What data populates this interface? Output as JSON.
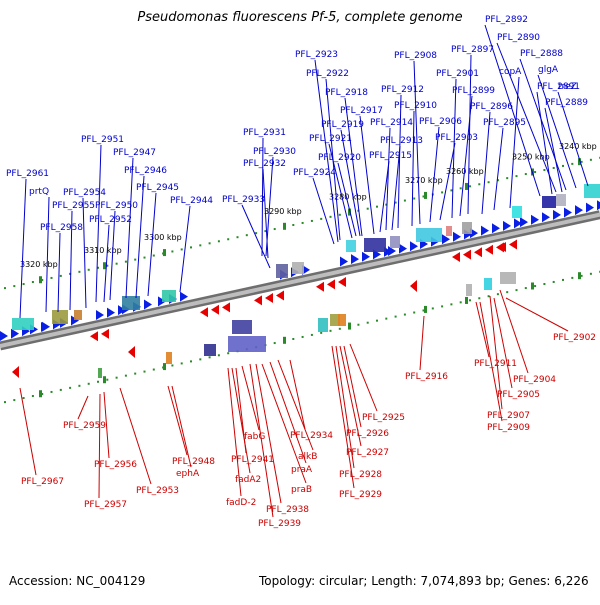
{
  "title": "Pseudomonas fluorescens Pf-5, complete genome",
  "footer": {
    "accession": "Accession: NC_004129",
    "summary": "Topology: circular; Length: 7,074,893 bp; Genes: 6,226"
  },
  "colors": {
    "forward_gene": "#0a1fe6",
    "reverse_gene": "#e60000",
    "forward_label": "#0000cc",
    "reverse_label": "#cc0000",
    "backbone": "#9a9a9a",
    "tick": "#2a8a2a"
  },
  "scale_ticks": [
    "3320 kbp",
    "3310 kbp",
    "3300 kbp",
    "3290 kbp",
    "3280 kbp",
    "3270 kbp",
    "3260 kbp",
    "3250 kbp",
    "3240 kbp"
  ],
  "forward_genes": [
    {
      "label": "PFL_2961",
      "text_on_right": false
    },
    {
      "label": "prtQ",
      "text_on_right": false
    },
    {
      "label": "PFL_2958",
      "text_on_right": false
    },
    {
      "label": "PFL_2955",
      "text_on_right": false
    },
    {
      "label": "PFL_2954",
      "text_on_right": false
    },
    {
      "label": "PFL_2952",
      "text_on_right": false
    },
    {
      "label": "PFL_2951",
      "text_on_right": false
    },
    {
      "label": "PFL_2950",
      "text_on_right": false
    },
    {
      "label": "PFL_2947",
      "text_on_right": false
    },
    {
      "label": "PFL_2946",
      "text_on_right": false
    },
    {
      "label": "PFL_2945",
      "text_on_right": false
    },
    {
      "label": "PFL_2944",
      "text_on_right": false
    },
    {
      "label": "PFL_2933",
      "text_on_right": false
    },
    {
      "label": "PFL_2932",
      "text_on_right": false
    },
    {
      "label": "PFL_2931",
      "text_on_right": false
    },
    {
      "label": "PFL_2930",
      "text_on_right": false
    },
    {
      "label": "PFL_2924",
      "text_on_right": false
    },
    {
      "label": "PFL_2923",
      "text_on_right": false
    },
    {
      "label": "PFL_2922",
      "text_on_right": false
    },
    {
      "label": "PFL_2921",
      "text_on_right": false
    },
    {
      "label": "PFL_2920",
      "text_on_right": false
    },
    {
      "label": "PFL_2919",
      "text_on_right": false
    },
    {
      "label": "PFL_2918",
      "text_on_right": false
    },
    {
      "label": "PFL_2917",
      "text_on_right": false
    },
    {
      "label": "PFL_2915",
      "text_on_right": false
    },
    {
      "label": "PFL_2914",
      "text_on_right": false
    },
    {
      "label": "PFL_2913",
      "text_on_right": false
    },
    {
      "label": "PFL_2912",
      "text_on_right": false
    },
    {
      "label": "PFL_2910",
      "text_on_right": false
    },
    {
      "label": "PFL_2908",
      "text_on_right": false
    },
    {
      "label": "PFL_2906",
      "text_on_right": false
    },
    {
      "label": "PFL_2903",
      "text_on_right": false
    },
    {
      "label": "PFL_2901",
      "text_on_right": false
    },
    {
      "label": "PFL_2899",
      "text_on_right": false
    },
    {
      "label": "PFL_2897",
      "text_on_right": false
    },
    {
      "label": "PFL_2896",
      "text_on_right": false
    },
    {
      "label": "PFL_2895",
      "text_on_right": false
    },
    {
      "label": "copA",
      "text_on_right": false
    },
    {
      "label": "PFL_2892",
      "text_on_right": true
    },
    {
      "label": "PFL_2891",
      "text_on_right": true
    },
    {
      "label": "PFL_2890",
      "text_on_right": true
    },
    {
      "label": "PFL_2889",
      "text_on_right": true
    },
    {
      "label": "PFL_2888",
      "text_on_right": true
    },
    {
      "label": "glgA",
      "text_on_right": true
    },
    {
      "label": "treZ",
      "text_on_right": true
    }
  ],
  "reverse_genes": [
    {
      "label": "PFL_2967"
    },
    {
      "label": "PFL_2959"
    },
    {
      "label": "PFL_2957"
    },
    {
      "label": "PFL_2956"
    },
    {
      "label": "PFL_2953"
    },
    {
      "label": "PFL_2948"
    },
    {
      "label": "ephA"
    },
    {
      "label": "fadD-2"
    },
    {
      "label": "fadA2"
    },
    {
      "label": "PFL_2941"
    },
    {
      "label": "fabG"
    },
    {
      "label": "PFL_2939"
    },
    {
      "label": "PFL_2938"
    },
    {
      "label": "praB"
    },
    {
      "label": "praA"
    },
    {
      "label": "alkB"
    },
    {
      "label": "PFL_2934"
    },
    {
      "label": "PFL_2929"
    },
    {
      "label": "PFL_2928"
    },
    {
      "label": "PFL_2927"
    },
    {
      "label": "PFL_2926"
    },
    {
      "label": "PFL_2925"
    },
    {
      "label": "PFL_2916"
    },
    {
      "label": "PFL_2911"
    },
    {
      "label": "PFL_2909"
    },
    {
      "label": "PFL_2907"
    },
    {
      "label": "PFL_2905"
    },
    {
      "label": "PFL_2904"
    },
    {
      "label": "PFL_2902"
    }
  ]
}
